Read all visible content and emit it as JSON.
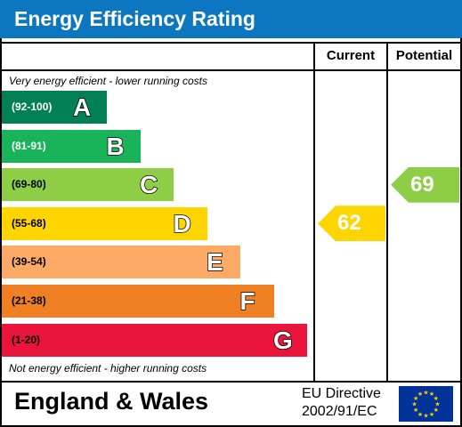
{
  "header": {
    "title": "Energy Efficiency Rating"
  },
  "columns": {
    "current": "Current",
    "potential": "Potential"
  },
  "notes": {
    "top": "Very energy efficient - lower running costs",
    "bottom": "Not energy efficient - higher running costs"
  },
  "chart_data": {
    "type": "bar",
    "title": "Energy Efficiency Rating",
    "categories": [
      "A",
      "B",
      "C",
      "D",
      "E",
      "F",
      "G"
    ],
    "bands": [
      {
        "letter": "A",
        "range": "(92-100)",
        "color": "#008054",
        "range_color": "#ffffff"
      },
      {
        "letter": "B",
        "range": "(81-91)",
        "color": "#19b459",
        "range_color": "#ffffff"
      },
      {
        "letter": "C",
        "range": "(69-80)",
        "color": "#8dce46",
        "range_color": "#000000"
      },
      {
        "letter": "D",
        "range": "(55-68)",
        "color": "#ffd500",
        "range_color": "#000000"
      },
      {
        "letter": "E",
        "range": "(39-54)",
        "color": "#fcaa65",
        "range_color": "#000000"
      },
      {
        "letter": "F",
        "range": "(21-38)",
        "color": "#ef8023",
        "range_color": "#000000"
      },
      {
        "letter": "G",
        "range": "(1-20)",
        "color": "#e9153b",
        "range_color": "#000000"
      }
    ],
    "current": {
      "value": 62,
      "band": "D",
      "color": "#ffd500"
    },
    "potential": {
      "value": 69,
      "band": "C",
      "color": "#8dce46"
    }
  },
  "footer": {
    "region": "England & Wales",
    "directive_line1": "EU Directive",
    "directive_line2": "2002/91/EC",
    "flag_icon": "eu-flag-icon",
    "flag_color": "#003399",
    "star_color": "#ffcc00"
  }
}
